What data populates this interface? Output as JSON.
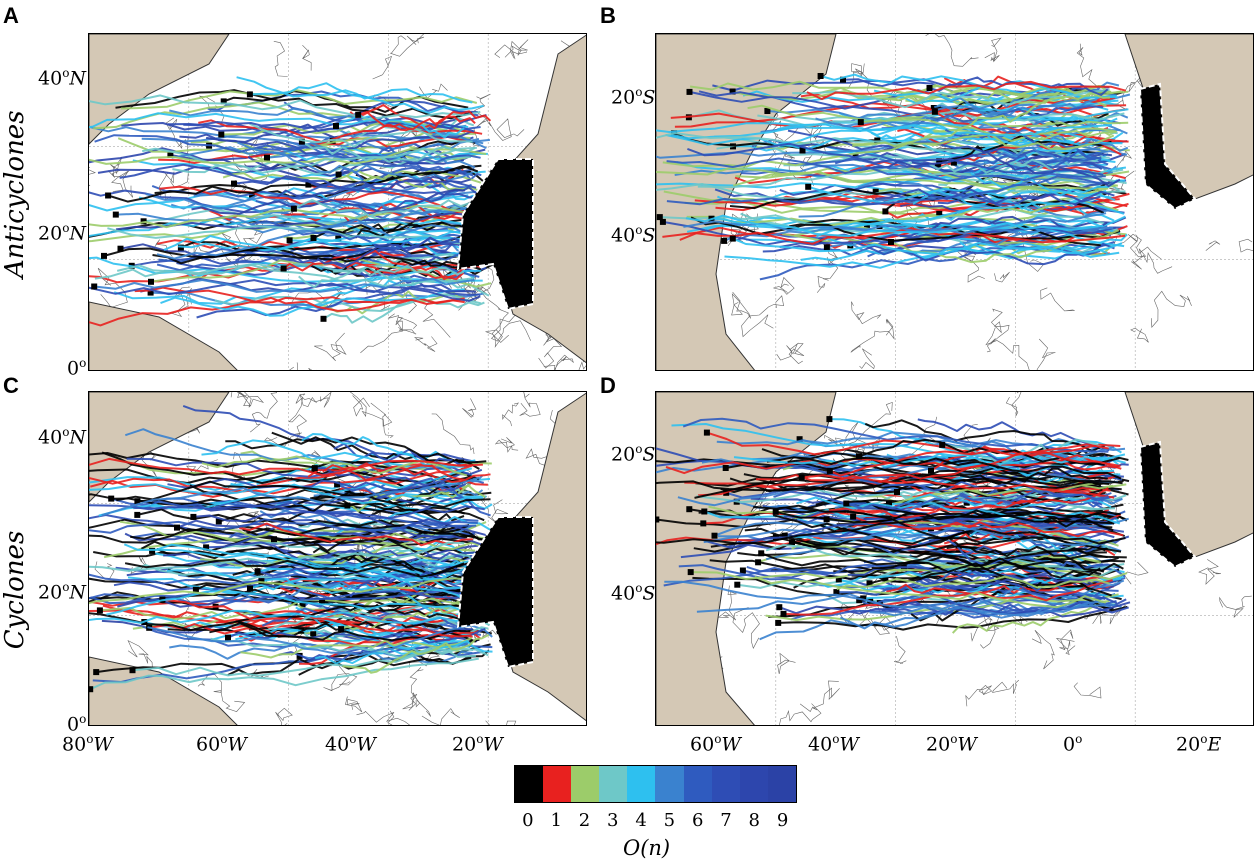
{
  "panels": [
    {
      "letter": "A",
      "id": "north-anticyclones",
      "row_label": "Anticyclones",
      "lat_ticks": [
        "40",
        "20",
        "0"
      ],
      "lat_hemi": [
        "N",
        "N",
        ""
      ]
    },
    {
      "letter": "B",
      "id": "south-anticyclones",
      "lat_ticks": [
        "20",
        "40"
      ],
      "lat_hemi": [
        "S",
        "S"
      ]
    },
    {
      "letter": "C",
      "id": "north-cyclones",
      "row_label": "Cyclones",
      "lat_ticks": [
        "40",
        "20",
        "0"
      ],
      "lat_hemi": [
        "N",
        "N",
        ""
      ],
      "lon_ticks": [
        "80",
        "60",
        "40",
        "20"
      ],
      "lon_hemi": [
        "W",
        "W",
        "W",
        "W"
      ]
    },
    {
      "letter": "D",
      "id": "south-cyclones",
      "lat_ticks": [
        "20",
        "40"
      ],
      "lat_hemi": [
        "S",
        "S"
      ],
      "lon_ticks": [
        "60",
        "40",
        "20",
        "0",
        "20"
      ],
      "lon_hemi": [
        "W",
        "W",
        "W",
        "",
        "E"
      ]
    }
  ],
  "colorbar": {
    "title": "O(n)",
    "labels": [
      "0",
      "1",
      "2",
      "3",
      "4",
      "5",
      "6",
      "7",
      "8",
      "9"
    ],
    "colors": [
      "#000000",
      "#e8211f",
      "#9ccc6a",
      "#6ec8c8",
      "#2ec0ef",
      "#3a82cf",
      "#2f5bbf",
      "#2e4db5",
      "#2d46ad",
      "#2b42a6"
    ]
  },
  "colors": {
    "land": "#d4c8b5",
    "ocean": "#ffffff",
    "contour": "#555555",
    "region_outline": "#ffffff"
  }
}
